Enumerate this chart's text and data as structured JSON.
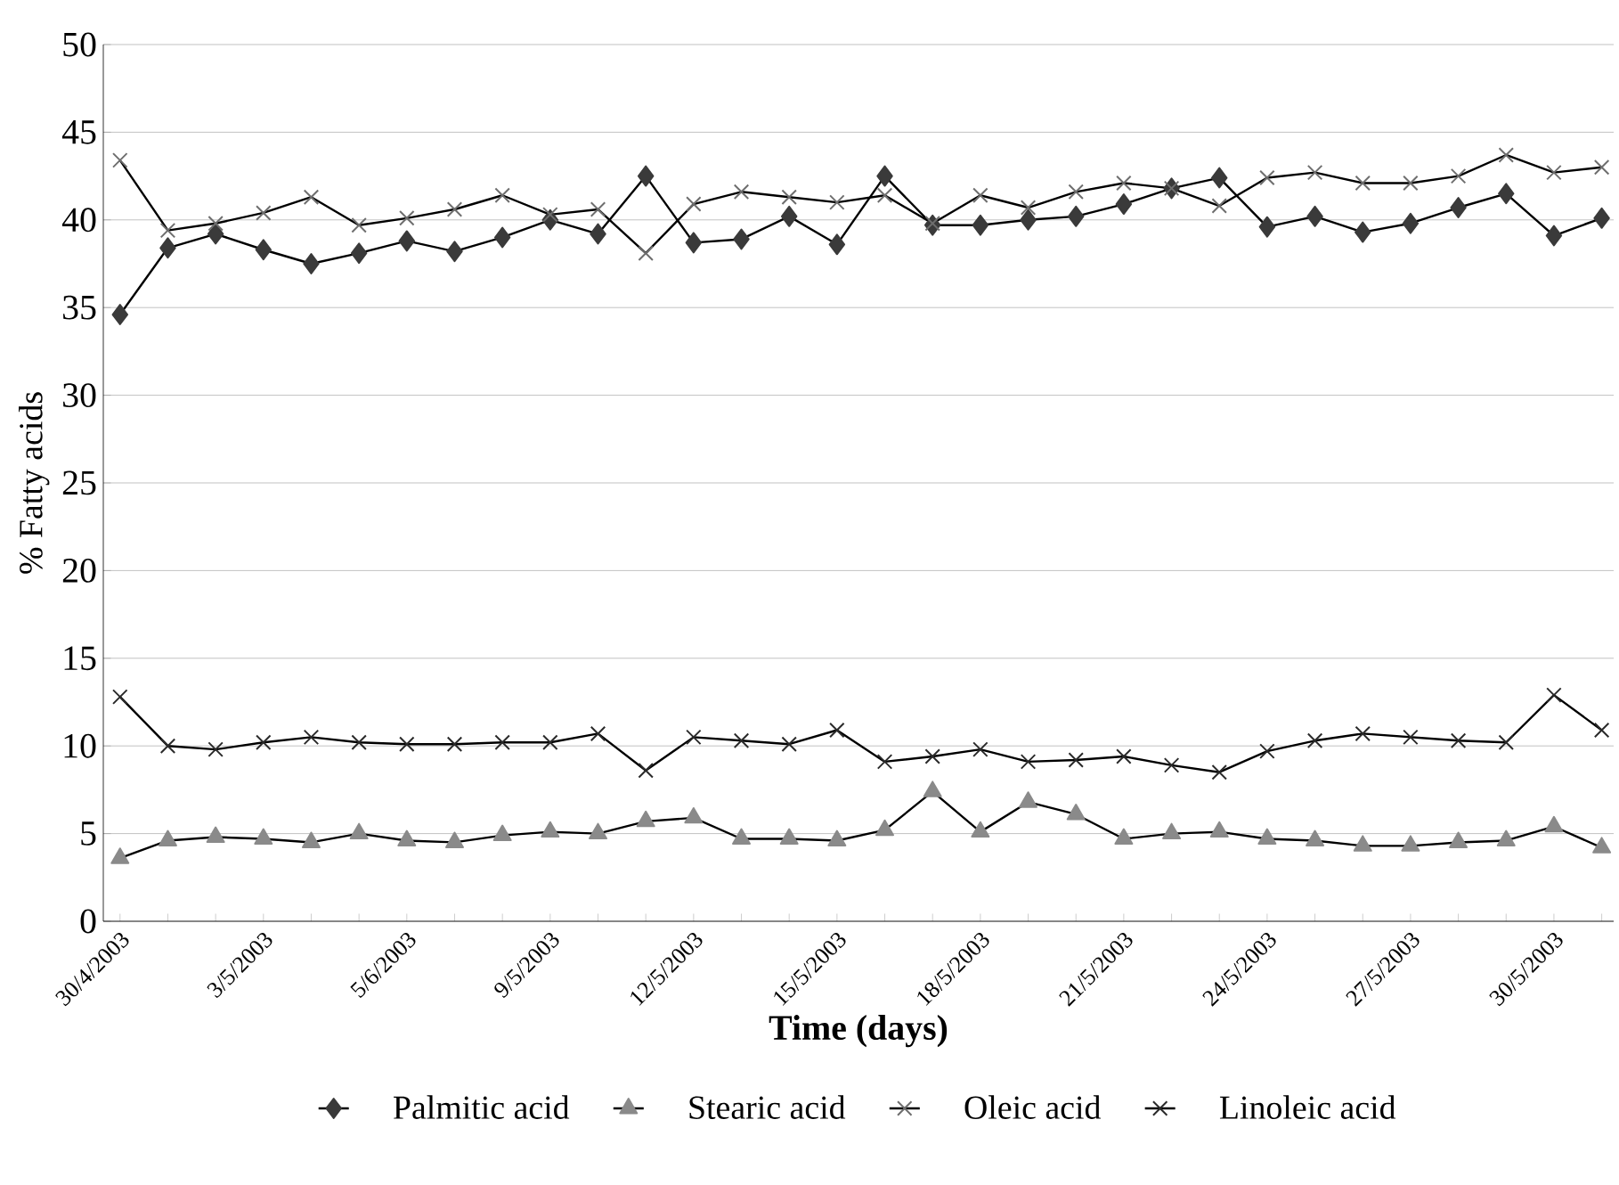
{
  "chart_data": {
    "type": "line",
    "xlabel": "Time (days)",
    "ylabel": "% Fatty acids",
    "categories": [
      "30/4/2003",
      null,
      null,
      "3/5/2003",
      null,
      null,
      "5/6/2003",
      null,
      null,
      "9/5/2003",
      null,
      null,
      "12/5/2003",
      null,
      null,
      "15/5/2003",
      null,
      null,
      "18/5/2003",
      null,
      null,
      "21/5/2003",
      null,
      null,
      "24/5/2003",
      null,
      null,
      "27/5/2003",
      null,
      null,
      "30/5/2003",
      null
    ],
    "ylim": [
      0,
      50
    ],
    "yticks": [
      0,
      5,
      10,
      15,
      20,
      25,
      30,
      35,
      40,
      45,
      50
    ],
    "grid": "y",
    "legend": "bottom",
    "line_style": "solid",
    "series": [
      {
        "name": "Palmitic acid",
        "color": "#3a3a3a",
        "marker": "diamond",
        "values": [
          34.6,
          38.4,
          39.2,
          38.3,
          37.5,
          38.1,
          38.8,
          38.2,
          39.0,
          40.0,
          39.2,
          42.5,
          38.7,
          38.9,
          40.2,
          38.6,
          42.5,
          39.7,
          39.7,
          40.0,
          40.2,
          40.9,
          41.8,
          42.4,
          39.6,
          40.2,
          39.3,
          39.8,
          40.7,
          41.5,
          39.1,
          40.1
        ]
      },
      {
        "name": "Stearic acid",
        "color": "#8a8a8a",
        "marker": "triangle",
        "values": [
          3.6,
          4.6,
          4.8,
          4.7,
          4.5,
          5.0,
          4.6,
          4.5,
          4.9,
          5.1,
          5.0,
          5.7,
          5.9,
          4.7,
          4.7,
          4.6,
          5.2,
          7.4,
          5.1,
          6.8,
          6.1,
          4.7,
          5.0,
          5.1,
          4.7,
          4.6,
          4.3,
          4.3,
          4.5,
          4.6,
          5.4,
          4.2
        ]
      },
      {
        "name": "Oleic acid",
        "color": "#6e6e6e",
        "marker": "cross",
        "values": [
          43.4,
          39.4,
          39.8,
          40.4,
          41.3,
          39.7,
          40.1,
          40.6,
          41.4,
          40.3,
          40.6,
          38.1,
          40.9,
          41.6,
          41.3,
          41.0,
          41.4,
          39.8,
          41.4,
          40.7,
          41.6,
          42.1,
          41.8,
          40.8,
          42.4,
          42.7,
          42.1,
          42.1,
          42.5,
          43.7,
          42.7,
          43.0
        ]
      },
      {
        "name": "Linoleic acid",
        "color": "#2a2a2a",
        "marker": "cross",
        "values": [
          12.8,
          10.0,
          9.8,
          10.2,
          10.5,
          10.2,
          10.1,
          10.1,
          10.2,
          10.2,
          10.7,
          8.6,
          10.5,
          10.3,
          10.1,
          10.9,
          9.1,
          9.4,
          9.8,
          9.1,
          9.2,
          9.4,
          8.9,
          8.5,
          9.7,
          10.3,
          10.7,
          10.5,
          10.3,
          10.2,
          12.9,
          10.9
        ]
      }
    ]
  }
}
